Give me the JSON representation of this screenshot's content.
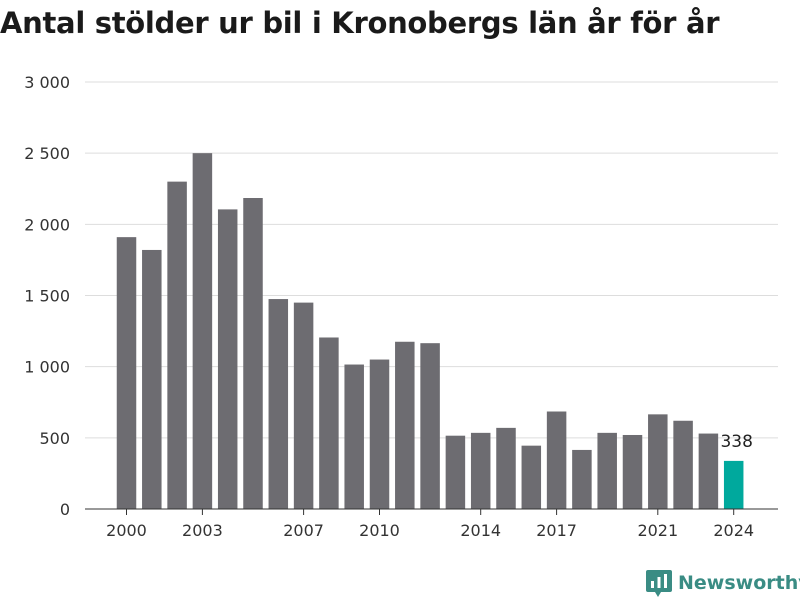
{
  "chart_data": {
    "type": "bar",
    "title": "Antal stölder ur bil i Kronobergs län år för år",
    "categories": [
      2000,
      2001,
      2002,
      2003,
      2004,
      2005,
      2006,
      2007,
      2008,
      2009,
      2010,
      2011,
      2012,
      2013,
      2014,
      2015,
      2016,
      2017,
      2018,
      2019,
      2020,
      2021,
      2022,
      2023,
      2024
    ],
    "values": [
      1910,
      1820,
      2300,
      2500,
      2105,
      2185,
      1475,
      1450,
      1205,
      1015,
      1050,
      1175,
      1165,
      515,
      535,
      570,
      445,
      685,
      415,
      535,
      520,
      665,
      620,
      530,
      338
    ],
    "x_tick_labels": [
      "2000",
      "2003",
      "2007",
      "2010",
      "2014",
      "2017",
      "2021",
      "2024"
    ],
    "y_ticks": [
      0,
      500,
      1000,
      1500,
      2000,
      2500,
      3000
    ],
    "y_tick_labels": [
      "0",
      "500",
      "1 000",
      "1 500",
      "2 000",
      "2 500",
      "3 000"
    ],
    "ylim": [
      0,
      3000
    ],
    "grid": true,
    "highlight_index": 24,
    "highlight_label": "338",
    "colors": {
      "bar": "#6d6c71",
      "highlight": "#00a99d",
      "grid": "#dddddd"
    }
  },
  "brand": {
    "name": "Newsworthy",
    "icon": "newsworthy-logo-icon"
  }
}
